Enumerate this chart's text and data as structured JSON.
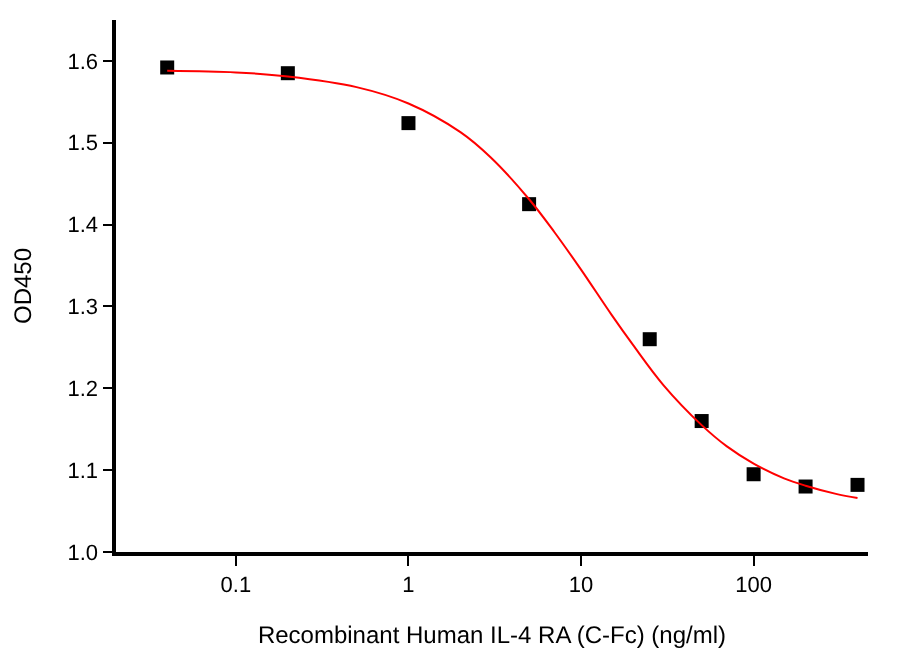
{
  "chart_data": {
    "type": "scatter",
    "xlabel": "Recombinant Human IL-4 RA (C-Fc) (ng/ml)",
    "ylabel": "OD450",
    "log": "x",
    "grid": false,
    "marker": "square",
    "xlim": [
      0.0202,
      460
    ],
    "xticks": [
      {
        "value": 0.1,
        "label": "0.1"
      },
      1,
      10,
      100
    ],
    "ylim": [
      1.0,
      1.65
    ],
    "yticks": [
      {
        "value": 1.0,
        "label": "1.0"
      },
      1.1,
      1.2,
      1.3,
      1.4,
      1.5,
      1.6
    ],
    "series": [
      {
        "color": "#000000",
        "x": [
          0.04,
          0.2,
          1,
          5,
          25,
          50,
          100,
          200,
          400
        ],
        "values": [
          1.592,
          1.585,
          1.524,
          1.425,
          1.26,
          1.16,
          1.095,
          1.08,
          1.082
        ]
      },
      {
        "type": "line",
        "color": "#ff0000",
        "marker": "none",
        "line_style": "solid",
        "x": [
          0.04,
          0.1,
          0.2,
          0.5,
          1,
          2,
          3,
          5,
          7,
          10,
          15,
          20,
          30,
          50,
          70,
          100,
          150,
          200,
          300,
          400
        ],
        "values": [
          1.588,
          1.586,
          1.581,
          1.568,
          1.548,
          1.513,
          1.482,
          1.431,
          1.391,
          1.345,
          1.29,
          1.253,
          1.204,
          1.155,
          1.129,
          1.108,
          1.09,
          1.081,
          1.071,
          1.066
        ]
      }
    ]
  }
}
